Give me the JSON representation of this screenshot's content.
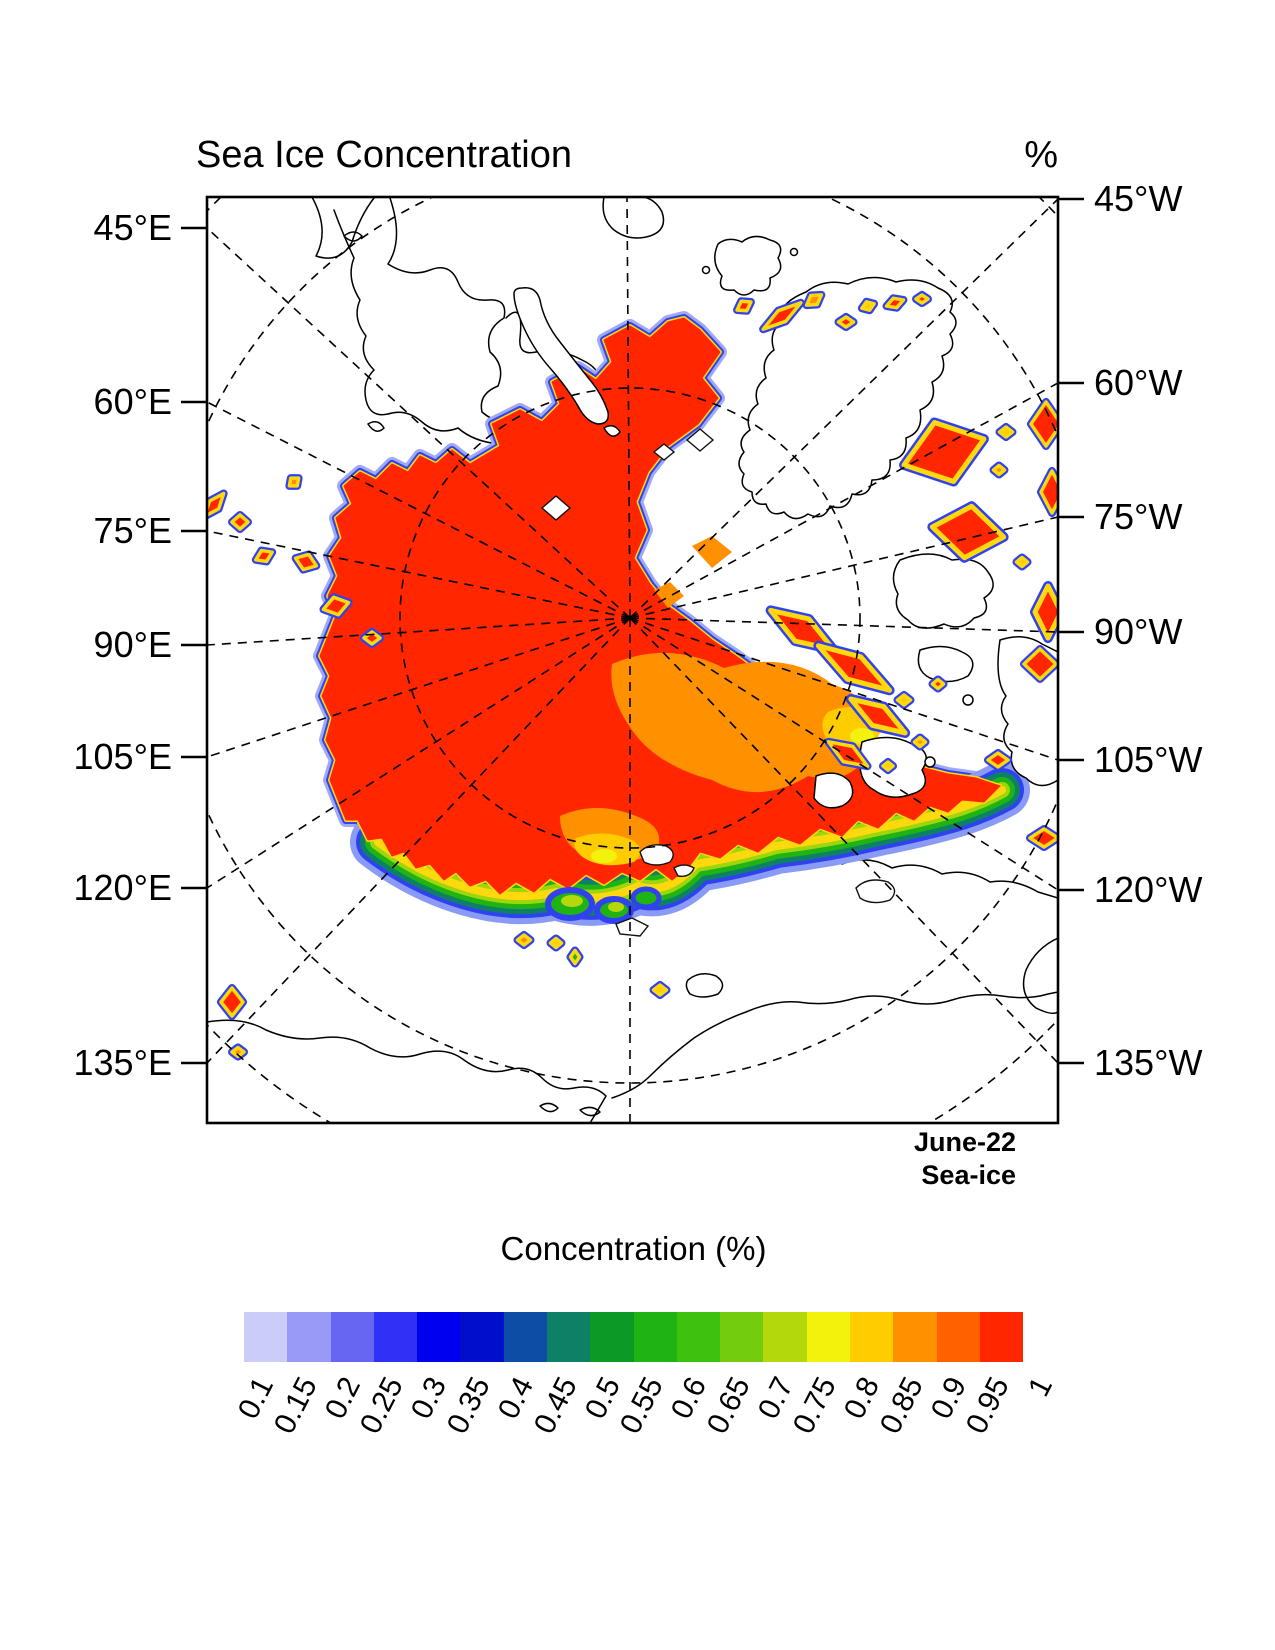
{
  "title": "Sea Ice Concentration",
  "corner_units": "%",
  "left_axis_labels": [
    "45°E",
    "60°E",
    "75°E",
    "90°E",
    "105°E",
    "120°E",
    "135°E"
  ],
  "right_axis_labels": [
    "45°W",
    "60°W",
    "75°W",
    "90°W",
    "105°W",
    "120°W",
    "135°W"
  ],
  "annotation": {
    "line1": "June-22",
    "line2": "Sea-ice"
  },
  "colorbar": {
    "title": "Concentration (%)",
    "tick_labels": [
      "0.1",
      "0.15",
      "0.2",
      "0.25",
      "0.3",
      "0.35",
      "0.4",
      "0.45",
      "0.5",
      "0.55",
      "0.6",
      "0.65",
      "0.7",
      "0.75",
      "0.8",
      "0.85",
      "0.9",
      "0.95",
      "1"
    ],
    "colors": [
      "#ccccf9",
      "#9999f7",
      "#6666f2",
      "#3030f7",
      "#0000f0",
      "#000fcc",
      "#0d4da6",
      "#0d8066",
      "#0d9926",
      "#1fb314",
      "#3fc20d",
      "#73cc0d",
      "#b3d90d",
      "#f2f20d",
      "#ffcc00",
      "#ff9100",
      "#ff6100",
      "#ff2600"
    ]
  },
  "map_colors": {
    "ice_max_red": "#ff2600",
    "ice_orange": "#ff9100",
    "ice_gold": "#ffcc00",
    "ice_yellow": "#f2f20d",
    "fringe_green": "#1fb314",
    "fringe_lightgreen": "#9ed60d",
    "fringe_teal": "#0d8066",
    "edge_blue": "#3042f0",
    "halo_blue": "#9fa9f7",
    "ring_yellow": "#ffd90d",
    "coastline": "#000000"
  },
  "chart_data": {
    "type": "heatmap",
    "subtype": "filled-contour polar stereographic map",
    "title": "Sea Ice Concentration",
    "units": "%",
    "colorbar_title": "Concentration (%)",
    "levels": [
      0.1,
      0.15,
      0.2,
      0.25,
      0.3,
      0.35,
      0.4,
      0.45,
      0.5,
      0.55,
      0.6,
      0.65,
      0.7,
      0.75,
      0.8,
      0.85,
      0.9,
      0.95,
      1
    ],
    "palette": [
      "#ccccf9",
      "#9999f7",
      "#6666f2",
      "#3030f7",
      "#0000f0",
      "#000fcc",
      "#0d4da6",
      "#0d8066",
      "#0d9926",
      "#1fb314",
      "#3fc20d",
      "#73cc0d",
      "#b3d90d",
      "#f2f20d",
      "#ffcc00",
      "#ff9100",
      "#ff6100",
      "#ff2600"
    ],
    "annotation": [
      "June-22",
      "Sea-ice"
    ],
    "left_axis": [
      "45°E",
      "60°E",
      "75°E",
      "90°E",
      "105°E",
      "120°E",
      "135°E"
    ],
    "right_axis": [
      "45°W",
      "60°W",
      "75°W",
      "90°W",
      "105°W",
      "120°W",
      "135°W"
    ],
    "legend_position": "bottom",
    "grid": "dashed polar graticule (meridians every 15°, latitude circles)",
    "summary": "Central Arctic ice pack at 0.95-1 concentration (red) with orange/yellow 0.7-0.95 patches on the Pacific side; marginal ice zone falls through green and blue (0.1-0.6) along the southern edge; scattered high-concentration patches along Canadian Archipelago, Baffin Bay and northeast Greenland coasts."
  }
}
